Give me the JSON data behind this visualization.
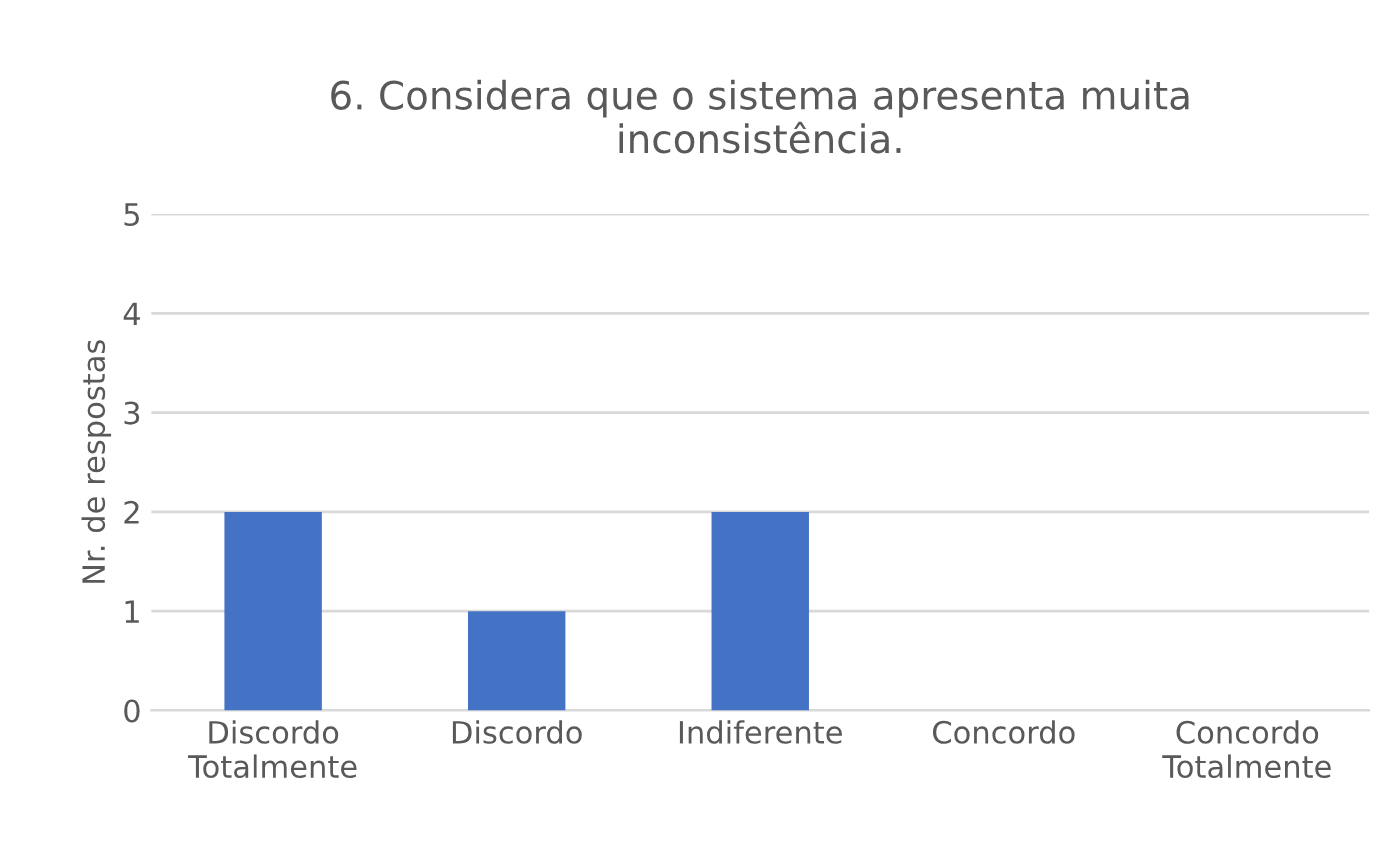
{
  "chart_data": {
    "type": "bar",
    "title": "6. Considera que o sistema apresenta muita\ninconsistência.",
    "ylabel": "Nr. de respostas",
    "categories": [
      "Discordo\nTotalmente",
      "Discordo",
      "Indiferente",
      "Concordo",
      "Concordo\nTotalmente"
    ],
    "values": [
      2,
      1,
      2,
      0,
      0
    ],
    "color": "#4472c4",
    "ylim": [
      0,
      5
    ],
    "yticks": [
      0,
      1,
      2,
      3,
      4,
      5
    ],
    "grid": "y",
    "legend": false
  }
}
